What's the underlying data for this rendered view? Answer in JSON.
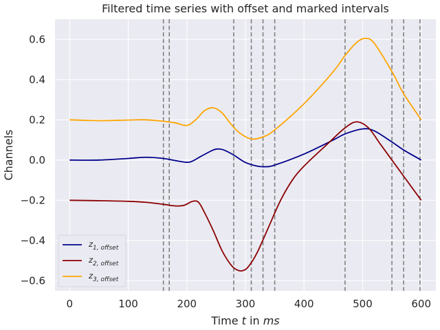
{
  "chart_data": {
    "type": "line",
    "title": "Filtered time series with offset and marked intervals",
    "xlabel": "Time $t$ in $ms$",
    "xlabel_parts": {
      "prefix": "Time ",
      "t": "t",
      "mid": " in ",
      "unit": "ms"
    },
    "ylabel": "Channels",
    "xlim": [
      -25,
      625
    ],
    "ylim": [
      -0.65,
      0.7
    ],
    "x_ticks": [
      0,
      100,
      200,
      300,
      400,
      500,
      600
    ],
    "y_ticks": [
      -0.6,
      -0.4,
      -0.2,
      0.0,
      0.2,
      0.4,
      0.6
    ],
    "y_tick_labels": [
      "−0.6",
      "−0.4",
      "−0.2",
      "0.0",
      "0.2",
      "0.4",
      "0.6"
    ],
    "grid": true,
    "legend_position": "lower-left",
    "background_color": "#eaeaf2",
    "grid_color": "#ffffff",
    "vertical_lines": {
      "x": [
        160,
        170,
        280,
        310,
        330,
        350,
        470,
        550,
        570,
        598
      ],
      "color": "#808080",
      "style": "dashed"
    },
    "series": [
      {
        "name": "z_{1,offset}",
        "label_main": "z",
        "label_sub": "1, offset",
        "color": "#00008b",
        "x": [
          0,
          50,
          100,
          130,
          160,
          185,
          205,
          225,
          245,
          255,
          265,
          280,
          300,
          320,
          335,
          350,
          400,
          450,
          470,
          500,
          520,
          550,
          570,
          600
        ],
        "y": [
          0.0,
          0.0,
          0.008,
          0.014,
          0.008,
          -0.005,
          -0.01,
          0.02,
          0.05,
          0.055,
          0.048,
          0.025,
          -0.012,
          -0.03,
          -0.033,
          -0.025,
          0.03,
          0.1,
          0.13,
          0.155,
          0.145,
          0.09,
          0.05,
          0.0
        ]
      },
      {
        "name": "z_{2,offset}",
        "label_main": "z",
        "label_sub": "2, offset",
        "color": "#8b0000",
        "x": [
          0,
          50,
          100,
          130,
          160,
          180,
          195,
          210,
          220,
          230,
          245,
          260,
          275,
          285,
          295,
          305,
          320,
          340,
          360,
          380,
          400,
          440,
          470,
          490,
          510,
          530,
          550,
          570,
          600
        ],
        "y": [
          -0.2,
          -0.202,
          -0.205,
          -0.21,
          -0.22,
          -0.228,
          -0.225,
          -0.205,
          -0.21,
          -0.26,
          -0.35,
          -0.45,
          -0.52,
          -0.545,
          -0.55,
          -0.53,
          -0.46,
          -0.33,
          -0.2,
          -0.1,
          -0.03,
          0.08,
          0.16,
          0.19,
          0.16,
          0.08,
          0.0,
          -0.08,
          -0.2
        ]
      },
      {
        "name": "z_{3,offset}",
        "label_main": "z",
        "label_sub": "3, offset",
        "color": "#ffa500",
        "x": [
          0,
          50,
          100,
          130,
          160,
          180,
          200,
          215,
          230,
          245,
          260,
          275,
          290,
          310,
          330,
          350,
          400,
          450,
          470,
          490,
          505,
          520,
          550,
          570,
          600
        ],
        "y": [
          0.2,
          0.196,
          0.199,
          0.2,
          0.193,
          0.185,
          0.172,
          0.2,
          0.245,
          0.26,
          0.235,
          0.18,
          0.135,
          0.105,
          0.115,
          0.15,
          0.28,
          0.44,
          0.52,
          0.585,
          0.605,
          0.58,
          0.44,
          0.33,
          0.2
        ]
      }
    ]
  }
}
